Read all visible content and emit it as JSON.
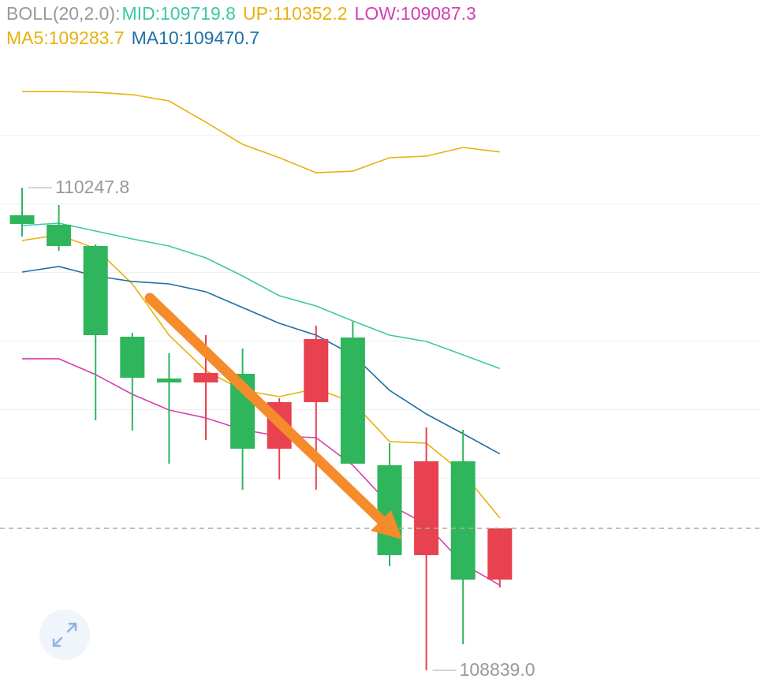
{
  "chart_data": {
    "type": "candlestick",
    "indicator_label": "BOLL(20,2.0):",
    "categories": [
      null,
      null,
      null,
      null,
      null,
      null,
      null,
      null,
      null,
      null,
      null,
      null,
      null,
      null
    ],
    "open": [
      110167.2,
      110139.6,
      110077.5,
      109812.7,
      109690.7,
      109679.2,
      109704.5,
      109485.8,
      109621.7,
      109810.4,
      109437.5,
      109175.1,
      109449.0,
      109103.7
    ],
    "high": [
      110247.8,
      110197.2,
      110082.1,
      109824.2,
      109764.4,
      109817.3,
      109778.2,
      109633.2,
      109844.9,
      109856.5,
      109502.0,
      109548.0,
      109541.1,
      109253.3
    ],
    "low": [
      110105.1,
      110063.6,
      109568.7,
      109538.8,
      109442.1,
      109511.2,
      109366.1,
      109396.1,
      109366.1,
      109442.1,
      109142.8,
      108839.0,
      108914.9,
      109080.7
    ],
    "close": [
      110141.9,
      110077.5,
      109817.3,
      109693.0,
      109679.2,
      109706.8,
      109485.8,
      109621.7,
      109805.8,
      109442.1,
      109175.1,
      109449.0,
      109103.7,
      109253.3
    ],
    "up_color": "#e8414f",
    "down_color": "#2fb55c",
    "series": [
      {
        "name": "MID:109719.8",
        "color": "#3cc9a6",
        "values": [
          110137.3,
          110144.2,
          110121.2,
          110098.2,
          110077.5,
          110042.9,
          109990.0,
          109932.4,
          109902.5,
          109858.8,
          109817.3,
          109798.9,
          109759.8,
          109719.8
        ]
      },
      {
        "name": "UP:110352.2",
        "color": "#e8b10c",
        "values": [
          110528.6,
          110528.6,
          110526.3,
          110519.4,
          110501.0,
          110438.9,
          110374.4,
          110335.3,
          110291.5,
          110296.1,
          110335.3,
          110339.9,
          110365.2,
          110352.2
        ]
      },
      {
        "name": "LOW:109087.3",
        "color": "#d43fb3",
        "values": [
          109748.3,
          109748.3,
          109702.2,
          109644.7,
          109598.6,
          109575.6,
          109541.1,
          109522.7,
          109518.1,
          109437.5,
          109322.4,
          109264.9,
          109149.7,
          109087.3
        ]
      },
      {
        "name": "MA5:109283.7",
        "color": "#e8b10c",
        "values": [
          110093.6,
          110109.7,
          110070.5,
          109966.9,
          109817.3,
          109713.7,
          109656.2,
          109637.8,
          109660.8,
          109621.7,
          109506.6,
          109502.0,
          109414.5,
          109283.7
        ]
      },
      {
        "name": "MA10:109470.7",
        "color": "#1f6ea6",
        "values": [
          110001.5,
          110017.6,
          109990.0,
          109973.9,
          109967.0,
          109943.9,
          109897.9,
          109851.9,
          109817.3,
          109759.8,
          109656.2,
          109587.1,
          109529.6,
          109470.7
        ]
      }
    ],
    "annotations": [
      {
        "value": 110247.8,
        "label": "110247.8"
      },
      {
        "value": 108839.0,
        "label": "108839.0"
      }
    ],
    "ylim": [
      108781.4,
      110795.7
    ],
    "yticks": [
      110400,
      110200,
      110000,
      109800,
      109600,
      109400
    ],
    "grid": true
  }
}
